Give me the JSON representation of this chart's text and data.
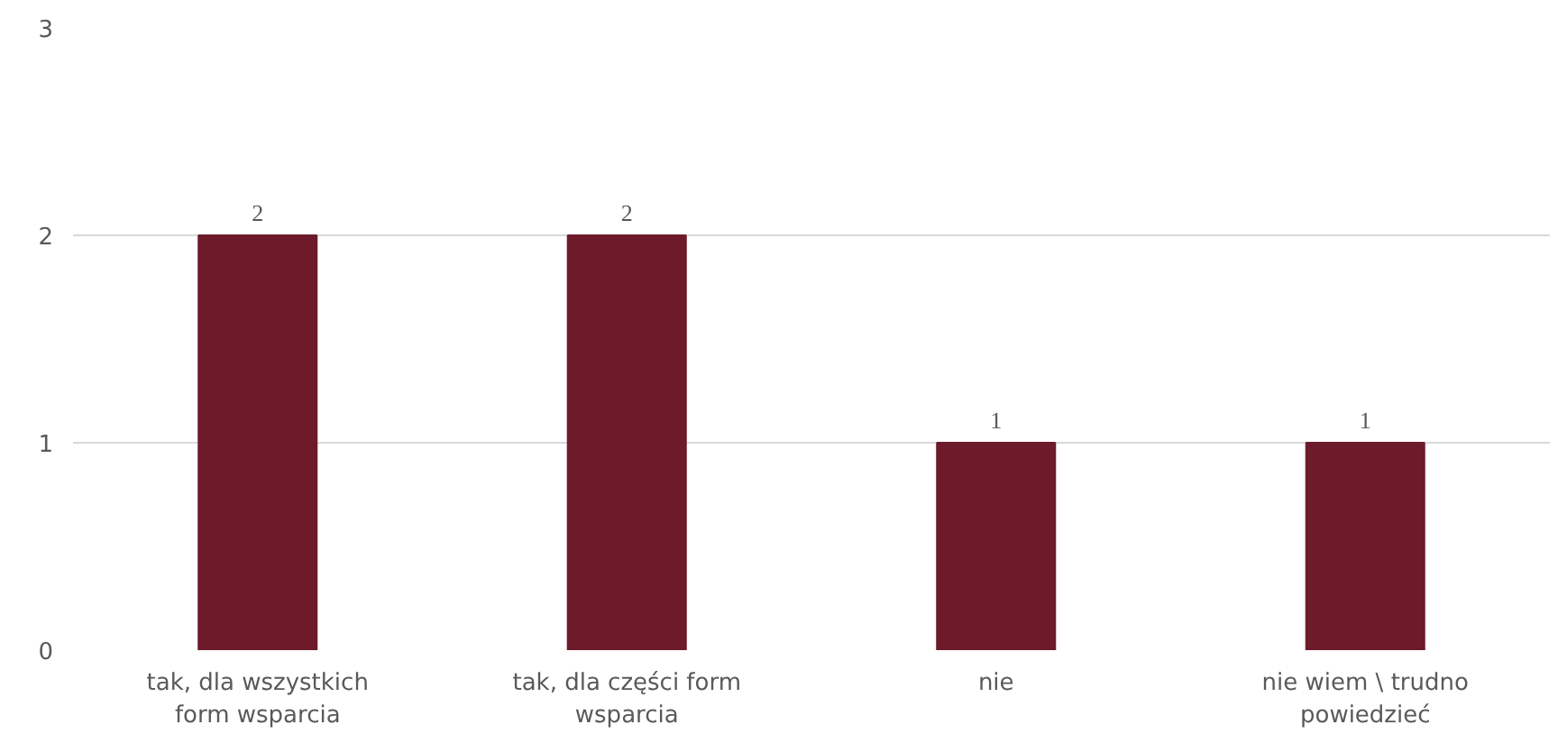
{
  "chart_data": {
    "type": "bar",
    "categories": [
      "tak, dla wszystkich form wsparcia",
      "tak, dla części form wsparcia",
      "nie",
      "nie wiem \\ trudno powiedzieć"
    ],
    "values": [
      2,
      2,
      1,
      1
    ],
    "color": "#6d1b2b",
    "ylim": [
      0,
      3
    ],
    "yticks": [
      0,
      1,
      2,
      3
    ],
    "grid": "y",
    "data_labels": true
  }
}
